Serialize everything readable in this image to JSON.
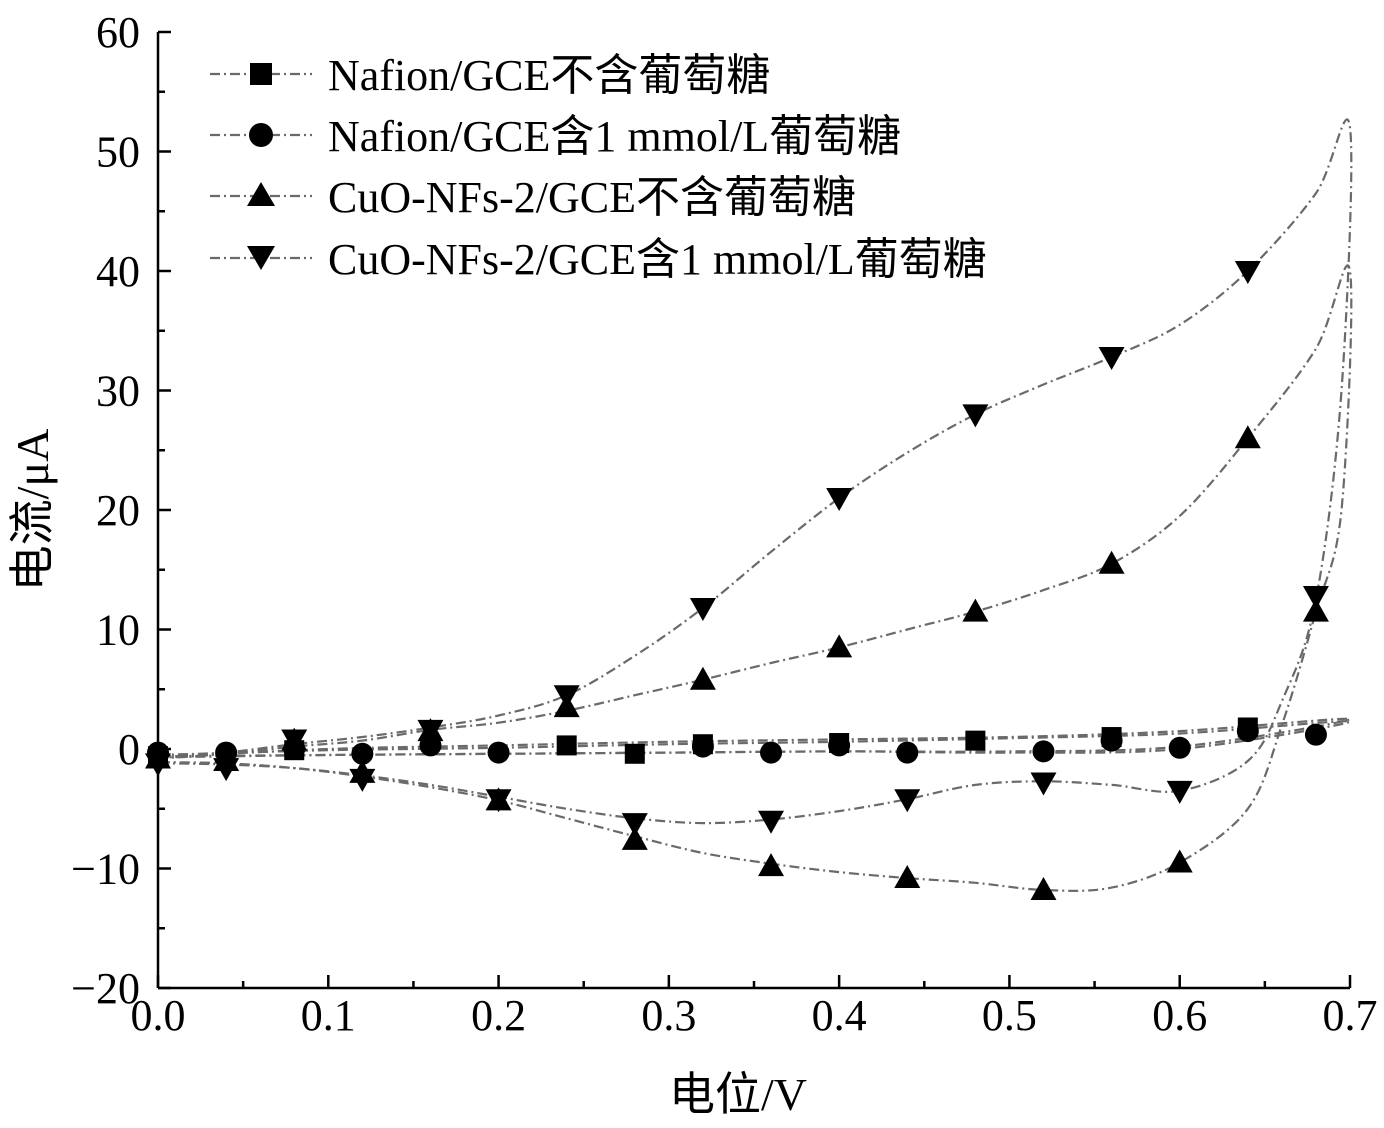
{
  "chart_data": {
    "type": "line",
    "title": "",
    "xlabel": "电位/V",
    "ylabel": "电流/μA",
    "xlim": [
      0.0,
      0.7
    ],
    "ylim": [
      -20,
      60
    ],
    "xticks": [
      "0.0",
      "0.1",
      "0.2",
      "0.3",
      "0.4",
      "0.5",
      "0.6",
      "0.7"
    ],
    "yticks": [
      "−20",
      "−10",
      "0",
      "10",
      "20",
      "30",
      "40",
      "50",
      "60"
    ],
    "grid": false,
    "legend_position": "top-left",
    "series": [
      {
        "name": "Nafion/GCE不含葡萄糖",
        "marker": "square",
        "curve": [
          [
            0.0,
            -0.5
          ],
          [
            0.1,
            -0.1
          ],
          [
            0.2,
            0.1
          ],
          [
            0.3,
            0.4
          ],
          [
            0.4,
            0.6
          ],
          [
            0.5,
            0.9
          ],
          [
            0.6,
            1.3
          ],
          [
            0.7,
            2.3
          ],
          [
            0.6,
            0.0
          ],
          [
            0.5,
            -0.3
          ],
          [
            0.4,
            -0.2
          ],
          [
            0.3,
            -0.3
          ],
          [
            0.2,
            -0.4
          ],
          [
            0.1,
            -0.5
          ],
          [
            0.0,
            -0.6
          ]
        ],
        "points": [
          [
            0.0,
            -0.6
          ],
          [
            0.08,
            -0.1
          ],
          [
            0.24,
            0.3
          ],
          [
            0.28,
            -0.4
          ],
          [
            0.32,
            0.4
          ],
          [
            0.4,
            0.5
          ],
          [
            0.48,
            0.7
          ],
          [
            0.56,
            1.0
          ],
          [
            0.64,
            1.8
          ]
        ]
      },
      {
        "name": "Nafion/GCE含1 mmol/L葡萄糖",
        "marker": "circle",
        "curve": [
          [
            0.0,
            -0.7
          ],
          [
            0.1,
            0.0
          ],
          [
            0.2,
            0.3
          ],
          [
            0.3,
            0.6
          ],
          [
            0.4,
            0.8
          ],
          [
            0.5,
            1.0
          ],
          [
            0.6,
            1.5
          ],
          [
            0.7,
            2.5
          ],
          [
            0.6,
            0.2
          ],
          [
            0.5,
            -0.2
          ],
          [
            0.4,
            -0.2
          ],
          [
            0.3,
            -0.3
          ],
          [
            0.2,
            -0.4
          ],
          [
            0.1,
            -0.5
          ],
          [
            0.0,
            -0.7
          ]
        ],
        "points": [
          [
            0.0,
            -0.3
          ],
          [
            0.04,
            -0.3
          ],
          [
            0.08,
            0.0
          ],
          [
            0.12,
            -0.4
          ],
          [
            0.16,
            0.3
          ],
          [
            0.2,
            -0.3
          ],
          [
            0.32,
            0.2
          ],
          [
            0.36,
            -0.3
          ],
          [
            0.4,
            0.3
          ],
          [
            0.44,
            -0.3
          ],
          [
            0.52,
            -0.2
          ],
          [
            0.56,
            0.7
          ],
          [
            0.6,
            0.1
          ],
          [
            0.64,
            1.5
          ],
          [
            0.68,
            1.2
          ]
        ]
      },
      {
        "name": "CuO-NFs-2/GCE不含葡萄糖",
        "marker": "triangle-up",
        "curve": [
          [
            0.0,
            -0.8
          ],
          [
            0.04,
            -0.4
          ],
          [
            0.08,
            0.2
          ],
          [
            0.12,
            0.7
          ],
          [
            0.16,
            1.6
          ],
          [
            0.2,
            2.2
          ],
          [
            0.24,
            3.2
          ],
          [
            0.28,
            4.5
          ],
          [
            0.32,
            5.8
          ],
          [
            0.36,
            7.2
          ],
          [
            0.4,
            8.5
          ],
          [
            0.44,
            10.0
          ],
          [
            0.48,
            11.5
          ],
          [
            0.52,
            13.3
          ],
          [
            0.56,
            15.5
          ],
          [
            0.6,
            19.5
          ],
          [
            0.64,
            26.0
          ],
          [
            0.68,
            33.5
          ],
          [
            0.7,
            40.0
          ],
          [
            0.695,
            20.0
          ],
          [
            0.68,
            11.5
          ],
          [
            0.66,
            2.0
          ],
          [
            0.64,
            -5.0
          ],
          [
            0.6,
            -9.5
          ],
          [
            0.56,
            -11.6
          ],
          [
            0.52,
            -11.8
          ],
          [
            0.48,
            -11.2
          ],
          [
            0.44,
            -10.8
          ],
          [
            0.4,
            -10.3
          ],
          [
            0.36,
            -9.6
          ],
          [
            0.32,
            -8.7
          ],
          [
            0.28,
            -7.3
          ],
          [
            0.24,
            -5.8
          ],
          [
            0.2,
            -4.3
          ],
          [
            0.16,
            -3.2
          ],
          [
            0.12,
            -2.3
          ],
          [
            0.08,
            -1.6
          ],
          [
            0.04,
            -1.2
          ],
          [
            0.0,
            -1.1
          ]
        ],
        "points": [
          [
            0.0,
            -0.8
          ],
          [
            0.08,
            0.7
          ],
          [
            0.16,
            1.5
          ],
          [
            0.24,
            3.5
          ],
          [
            0.32,
            5.8
          ],
          [
            0.4,
            8.5
          ],
          [
            0.48,
            11.5
          ],
          [
            0.56,
            15.5
          ],
          [
            0.64,
            26.0
          ],
          [
            0.68,
            11.5
          ],
          [
            0.6,
            -9.5
          ],
          [
            0.52,
            -11.8
          ],
          [
            0.44,
            -10.8
          ],
          [
            0.36,
            -9.8
          ],
          [
            0.28,
            -7.6
          ],
          [
            0.2,
            -4.3
          ],
          [
            0.12,
            -2.0
          ],
          [
            0.04,
            -1.0
          ]
        ]
      },
      {
        "name": "CuO-NFs-2/GCE含1 mmol/L葡萄糖",
        "marker": "triangle-down",
        "curve": [
          [
            0.0,
            -0.8
          ],
          [
            0.04,
            -0.3
          ],
          [
            0.08,
            0.4
          ],
          [
            0.12,
            1.0
          ],
          [
            0.16,
            1.8
          ],
          [
            0.2,
            2.8
          ],
          [
            0.24,
            4.5
          ],
          [
            0.28,
            7.8
          ],
          [
            0.32,
            11.8
          ],
          [
            0.36,
            16.5
          ],
          [
            0.4,
            21.0
          ],
          [
            0.44,
            24.8
          ],
          [
            0.48,
            28.0
          ],
          [
            0.52,
            30.5
          ],
          [
            0.56,
            32.8
          ],
          [
            0.6,
            35.5
          ],
          [
            0.64,
            40.0
          ],
          [
            0.68,
            46.5
          ],
          [
            0.7,
            52.0
          ],
          [
            0.695,
            30.0
          ],
          [
            0.68,
            12.5
          ],
          [
            0.66,
            4.0
          ],
          [
            0.64,
            -1.0
          ],
          [
            0.6,
            -3.5
          ],
          [
            0.56,
            -3.0
          ],
          [
            0.52,
            -2.7
          ],
          [
            0.48,
            -3.0
          ],
          [
            0.44,
            -4.2
          ],
          [
            0.4,
            -5.2
          ],
          [
            0.36,
            -5.9
          ],
          [
            0.32,
            -6.2
          ],
          [
            0.28,
            -5.8
          ],
          [
            0.24,
            -5.0
          ],
          [
            0.2,
            -4.0
          ],
          [
            0.16,
            -3.0
          ],
          [
            0.12,
            -2.2
          ],
          [
            0.08,
            -1.6
          ],
          [
            0.04,
            -1.3
          ],
          [
            0.0,
            -1.2
          ]
        ],
        "points": [
          [
            0.0,
            -1.2
          ],
          [
            0.04,
            -1.6
          ],
          [
            0.08,
            0.8
          ],
          [
            0.12,
            -2.5
          ],
          [
            0.16,
            1.6
          ],
          [
            0.2,
            -4.2
          ],
          [
            0.24,
            4.5
          ],
          [
            0.28,
            -6.2
          ],
          [
            0.32,
            11.8
          ],
          [
            0.36,
            -6.0
          ],
          [
            0.4,
            21.0
          ],
          [
            0.44,
            -4.2
          ],
          [
            0.48,
            28.0
          ],
          [
            0.52,
            -2.8
          ],
          [
            0.56,
            32.8
          ],
          [
            0.6,
            -3.5
          ],
          [
            0.64,
            40.0
          ],
          [
            0.68,
            12.8
          ]
        ]
      }
    ]
  }
}
